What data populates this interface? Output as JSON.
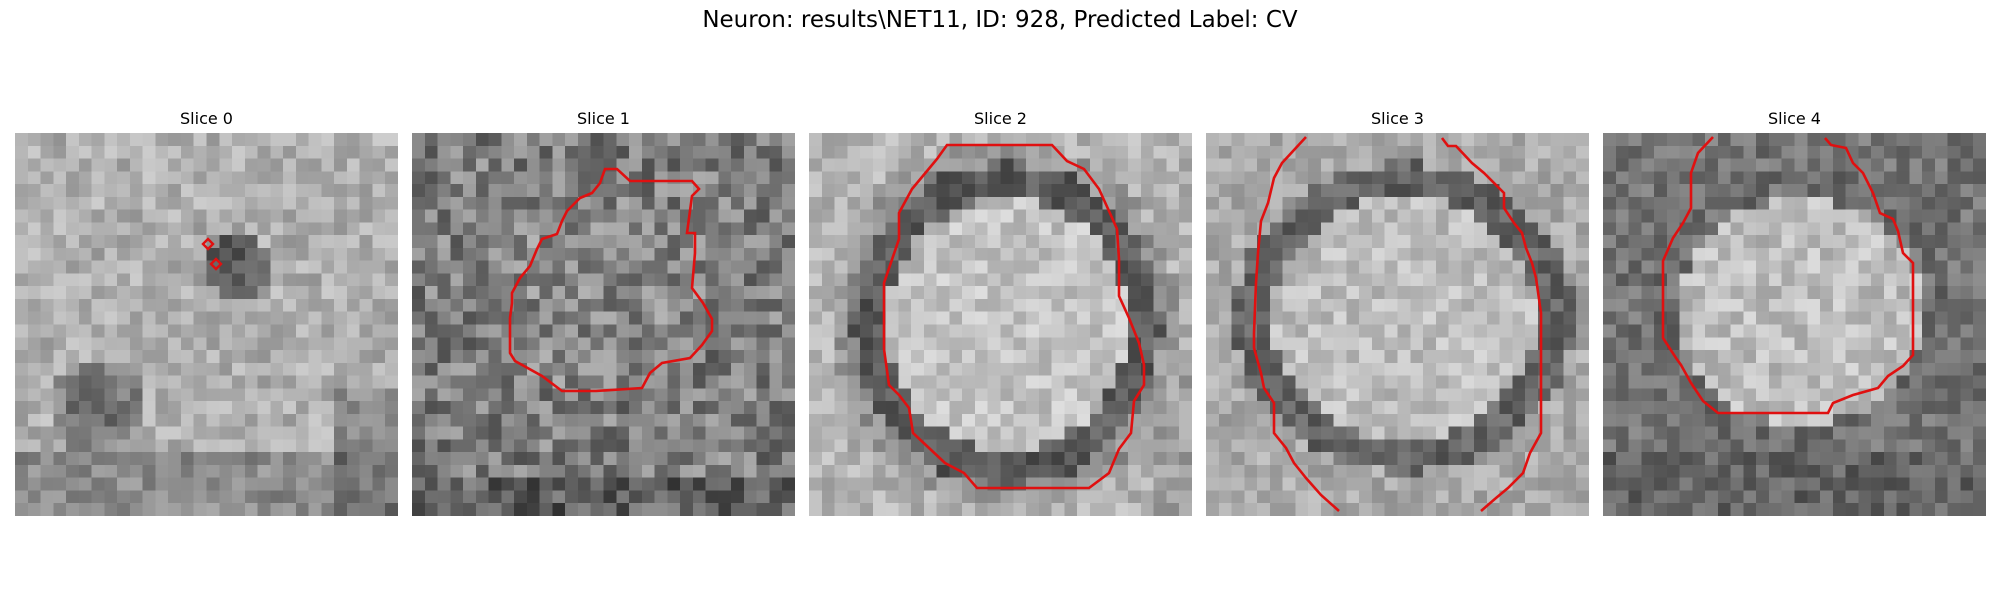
{
  "figure": {
    "title": "Neuron: results\\NET11, ID: 928, Predicted Label: CV"
  },
  "slices": [
    {
      "label": "Slice 0"
    },
    {
      "label": "Slice 1"
    },
    {
      "label": "Slice 2"
    },
    {
      "label": "Slice 3"
    },
    {
      "label": "Slice 4"
    }
  ],
  "colors": {
    "contour": "#e01010",
    "background": "#ffffff"
  }
}
